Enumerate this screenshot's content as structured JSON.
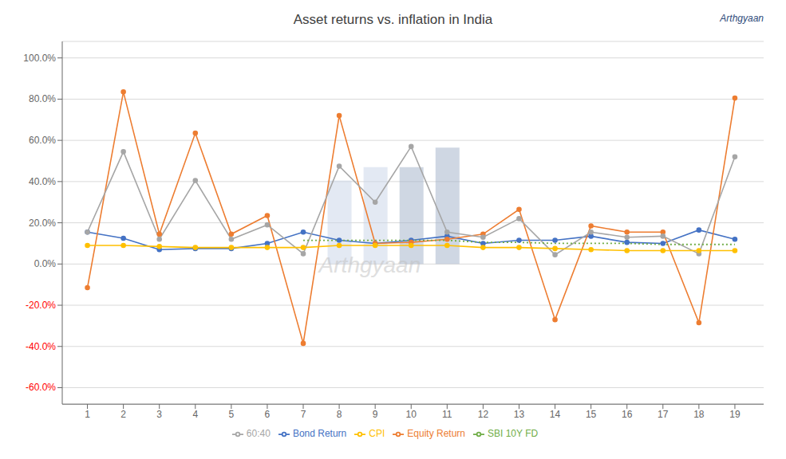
{
  "chart_data": {
    "type": "line",
    "title": "Asset returns vs. inflation in India",
    "x": [
      1,
      2,
      3,
      4,
      5,
      6,
      7,
      8,
      9,
      10,
      11,
      12,
      13,
      14,
      15,
      16,
      17,
      18,
      19
    ],
    "series": [
      {
        "name": "Bond Return",
        "color": "#4472c4",
        "marker": "o",
        "values": [
          0.155,
          0.125,
          0.07,
          0.075,
          0.075,
          0.1,
          0.155,
          0.115,
          0.1,
          0.115,
          0.135,
          0.1,
          0.115,
          0.115,
          0.135,
          0.105,
          0.1,
          0.165,
          0.12
        ]
      },
      {
        "name": "Equity Return",
        "color": "#ed7d31",
        "marker": "o",
        "values": [
          -0.115,
          0.835,
          0.145,
          0.635,
          0.145,
          0.235,
          -0.385,
          0.72,
          0.1,
          0.105,
          0.12,
          0.145,
          0.265,
          -0.27,
          0.185,
          0.155,
          0.155,
          -0.285,
          0.805
        ]
      },
      {
        "name": "60:40",
        "color": "#a6a6a6",
        "marker": "o",
        "values": [
          0.155,
          0.545,
          0.12,
          0.405,
          0.12,
          0.19,
          0.05,
          0.475,
          0.3,
          0.57,
          0.155,
          0.13,
          0.22,
          0.045,
          0.155,
          0.13,
          0.135,
          0.05,
          0.52
        ]
      },
      {
        "name": "CPI",
        "color": "#ffc000",
        "marker": "o",
        "values": [
          0.09,
          0.09,
          0.085,
          0.08,
          0.08,
          0.08,
          0.08,
          0.09,
          0.09,
          0.09,
          0.09,
          0.08,
          0.08,
          0.075,
          0.07,
          0.065,
          0.065,
          0.065,
          0.065
        ]
      },
      {
        "name": "SBI 10Y FD",
        "color": "#70ad47",
        "line_style": "dotted",
        "values": [
          null,
          null,
          null,
          null,
          null,
          null,
          0.115,
          0.115,
          0.115,
          0.115,
          0.115,
          0.105,
          0.105,
          0.1,
          0.1,
          0.1,
          0.095,
          0.095,
          0.095
        ]
      },
      {
        "type": "bar",
        "x": [
          8,
          9,
          10,
          11
        ],
        "values": [
          0.405,
          0.47,
          0.47,
          0.565
        ],
        "colors": [
          "#c8d4e8",
          "#c8d4e8",
          "#a0b0c8",
          "#a0b0c8"
        ]
      }
    ],
    "xlim": [
      0.3,
      19.8
    ],
    "xticks": [
      1,
      2,
      3,
      4,
      5,
      6,
      7,
      8,
      9,
      10,
      11,
      12,
      13,
      14,
      15,
      16,
      17,
      18,
      19
    ],
    "ylim": [
      -0.68,
      1.08
    ],
    "yticks": [
      {
        "value": 1.0,
        "label": "100.0%"
      },
      {
        "value": 0.8,
        "label": "80.0%"
      },
      {
        "value": 0.6,
        "label": "60.0%"
      },
      {
        "value": 0.4,
        "label": "40.0%"
      },
      {
        "value": 0.2,
        "label": "20.0%"
      },
      {
        "value": 0.0,
        "label": "0.0%"
      },
      {
        "value": -0.2,
        "label": "-20.0%"
      },
      {
        "value": -0.4,
        "label": "-40.0%"
      },
      {
        "value": -0.6,
        "label": "-60.0%"
      }
    ],
    "grid": true,
    "legend": "bottom",
    "annotations": [
      "Arthgyaan",
      "Arthgyaan"
    ]
  }
}
